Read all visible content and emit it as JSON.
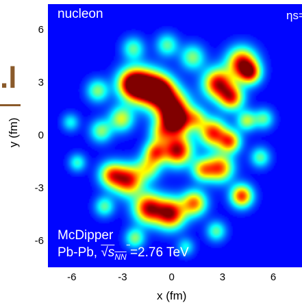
{
  "chart_data": {
    "type": "heatmap",
    "title": "",
    "xlabel": "x (fm)",
    "ylabel": "y (fm)",
    "xlim": [
      -7.5,
      7.5
    ],
    "ylim": [
      -7.5,
      7.5
    ],
    "x_ticks": [
      "-6",
      "-3",
      "0",
      "3",
      "6"
    ],
    "y_ticks": [
      "6",
      "3",
      "0",
      "-3",
      "-6"
    ],
    "colormap": "jet",
    "annotations": {
      "top_left": "nucleon",
      "top_right": "ηs=",
      "model": "McDipper",
      "system": "Pb-Pb,",
      "sqrt_s": "√s",
      "sqrt_sub": "NN",
      "energy": "=2.76 TeV"
    },
    "hotspots": [
      {
        "x": -1.8,
        "y": 2.8,
        "w": 0.7,
        "a": 1.0
      },
      {
        "x": -2.6,
        "y": 3.0,
        "w": 0.6,
        "a": 0.9
      },
      {
        "x": -0.9,
        "y": 2.6,
        "w": 0.6,
        "a": 0.95
      },
      {
        "x": -0.2,
        "y": 1.6,
        "w": 0.7,
        "a": 1.0
      },
      {
        "x": 0.0,
        "y": 0.8,
        "w": 0.55,
        "a": 0.9
      },
      {
        "x": 2.5,
        "y": 3.0,
        "w": 0.6,
        "a": 0.95
      },
      {
        "x": 3.3,
        "y": 2.2,
        "w": 0.5,
        "a": 0.8
      },
      {
        "x": 3.9,
        "y": 4.2,
        "w": 0.6,
        "a": 0.9
      },
      {
        "x": 4.4,
        "y": 3.6,
        "w": 0.45,
        "a": 0.75
      },
      {
        "x": 0.1,
        "y": -0.8,
        "w": 0.6,
        "a": 1.0
      },
      {
        "x": -1.2,
        "y": -0.9,
        "w": 0.45,
        "a": 0.7
      },
      {
        "x": 2.2,
        "y": 0.2,
        "w": 0.55,
        "a": 0.85
      },
      {
        "x": 3.2,
        "y": -0.3,
        "w": 0.45,
        "a": 0.75
      },
      {
        "x": 2.6,
        "y": -1.8,
        "w": 0.55,
        "a": 0.8
      },
      {
        "x": 1.6,
        "y": -1.9,
        "w": 0.45,
        "a": 0.6
      },
      {
        "x": -2.8,
        "y": -2.5,
        "w": 0.6,
        "a": 0.9
      },
      {
        "x": -3.8,
        "y": -2.2,
        "w": 0.5,
        "a": 0.7
      },
      {
        "x": -1.6,
        "y": -4.1,
        "w": 0.6,
        "a": 0.95
      },
      {
        "x": -0.3,
        "y": -4.4,
        "w": 0.6,
        "a": 1.0
      },
      {
        "x": 1.1,
        "y": -3.8,
        "w": 0.5,
        "a": 0.75
      },
      {
        "x": 3.9,
        "y": -3.4,
        "w": 0.45,
        "a": 0.85
      },
      {
        "x": -3.2,
        "y": 1.0,
        "w": 0.5,
        "a": 0.55
      },
      {
        "x": -4.4,
        "y": 0.3,
        "w": 0.45,
        "a": 0.45
      },
      {
        "x": -4.6,
        "y": 2.6,
        "w": 0.45,
        "a": 0.45
      },
      {
        "x": -1.6,
        "y": -1.8,
        "w": 0.5,
        "a": 0.5
      },
      {
        "x": 1.0,
        "y": 4.5,
        "w": 0.5,
        "a": 0.45
      },
      {
        "x": -0.5,
        "y": 5.2,
        "w": 0.45,
        "a": 0.4
      },
      {
        "x": -2.5,
        "y": 5.0,
        "w": 0.45,
        "a": 0.4
      },
      {
        "x": -5.8,
        "y": -1.5,
        "w": 0.35,
        "a": 0.35
      },
      {
        "x": -6.2,
        "y": 0.8,
        "w": 0.35,
        "a": 0.3
      },
      {
        "x": 5.2,
        "y": 1.0,
        "w": 0.4,
        "a": 0.4
      },
      {
        "x": 5.0,
        "y": -1.2,
        "w": 0.4,
        "a": 0.4
      },
      {
        "x": -2.4,
        "y": -5.8,
        "w": 0.4,
        "a": 0.45
      },
      {
        "x": 2.4,
        "y": -5.4,
        "w": 0.4,
        "a": 0.4
      },
      {
        "x": 0.6,
        "y": -6.3,
        "w": 0.35,
        "a": 0.3
      },
      {
        "x": -4.2,
        "y": -4.0,
        "w": 0.4,
        "a": 0.4
      },
      {
        "x": 1.2,
        "y": 1.0,
        "w": 0.45,
        "a": 0.5
      },
      {
        "x": -0.9,
        "y": 0.2,
        "w": 0.45,
        "a": 0.45
      },
      {
        "x": 4.2,
        "y": 0.9,
        "w": 0.4,
        "a": 0.5
      }
    ]
  }
}
